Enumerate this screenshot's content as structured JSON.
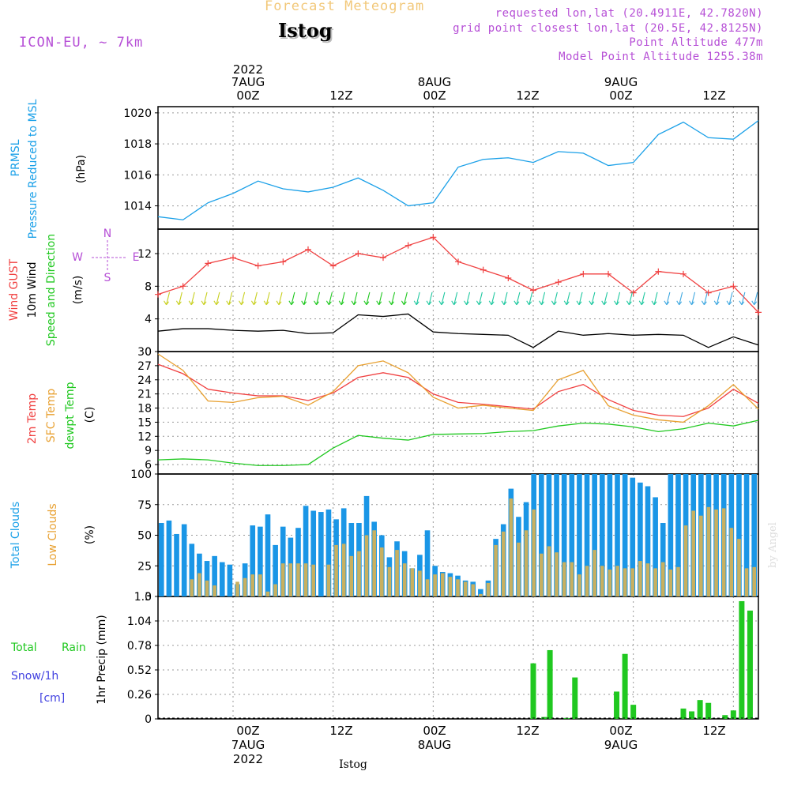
{
  "header": {
    "forecast_title": "Forecast Meteogram",
    "place": "Istog",
    "model": "ICON-EU, ~ 7km",
    "requested": "requested lon,lat (20.4911E, 42.7820N)",
    "grid_point": "grid point closest lon,lat (20.5E, 42.8125N)",
    "point_altitude": "Point Altitude 477m",
    "model_altitude": "Model Point Altitude 1255.38m"
  },
  "time_axis": {
    "top": {
      "year": "2022",
      "day1": "7AUG",
      "z1": "00Z",
      "z2": "12Z",
      "day2": "8AUG",
      "z3": "00Z",
      "z4": "12Z",
      "day3": "9AUG",
      "z5": "00Z",
      "z6": "12Z"
    },
    "bottom": {
      "z1": "00Z",
      "day1": "7AUG",
      "year": "2022",
      "z2": "12Z",
      "z3": "00Z",
      "day2": "8AUG",
      "z4": "12Z",
      "z5": "00Z",
      "day3": "9AUG",
      "z6": "12Z"
    },
    "place_bottom": "Istog"
  },
  "panel_labels": {
    "p1_a": "PRMSL",
    "p1_b": "Pressure Reduced to MSL",
    "p1_unit": "(hPa)",
    "p2_a": "Wind GUST",
    "p2_b": "10m Wind",
    "p2_c": "Speed and Direction",
    "p2_unit": "(m/s)",
    "p2_compass_n": "N",
    "p2_compass_s": "S",
    "p2_compass_w": "W",
    "p2_compass_e": "E",
    "p3_a": "2m Temp",
    "p3_b": "SFC Temp",
    "p3_c": "dewpt Temp",
    "p3_unit": "(C)",
    "p4_a": "Total Clouds",
    "p4_b": "Low Clouds",
    "p4_unit": "(%)",
    "p5_a": "Total",
    "p5_b": "Rain",
    "p5_c": "Snow/1h",
    "p5_d": "[cm]",
    "p5_unit": "1hr Precip (mm)"
  },
  "watermark": "by Angel",
  "colors": {
    "pressure": "#1aa0e8",
    "gust": "#f04040",
    "wind": "#000000",
    "temp2m": "#f04040",
    "sfc": "#e8a030",
    "dewpt": "#20c820",
    "total_cloud": "#1a96e6",
    "low_cloud": "#c8b060",
    "rain": "#20c820",
    "snow": "#4040e0",
    "model": "#b64fd6"
  },
  "chart_data": {
    "type": "line",
    "x_start": "2022-08-06 15Z",
    "x_end": "2022-08-09 15Z",
    "x_step_hours": 1,
    "panels": [
      {
        "name": "PRMSL",
        "ylabel": "(hPa)",
        "ylim": [
          1012.5,
          1020.4
        ],
        "yticks": [
          1014,
          1016,
          1018,
          1020
        ],
        "series": [
          {
            "name": "PRMSL",
            "x": [
              0,
              3,
              6,
              9,
              12,
              15,
              18,
              21,
              24,
              27,
              30,
              33,
              36,
              39,
              42,
              45,
              48,
              51,
              54,
              57,
              60,
              63,
              66,
              69,
              72
            ],
            "values": [
              1013.3,
              1013.1,
              1014.2,
              1014.8,
              1015.6,
              1015.1,
              1014.9,
              1015.2,
              1015.8,
              1015.0,
              1014.0,
              1014.2,
              1016.5,
              1017.0,
              1017.1,
              1016.8,
              1017.5,
              1017.4,
              1016.6,
              1016.8,
              1018.6,
              1019.4,
              1018.4,
              1018.3,
              1019.5
            ]
          }
        ]
      },
      {
        "name": "Wind",
        "ylabel": "(m/s)",
        "ylim": [
          0,
          15
        ],
        "yticks": [
          0,
          4,
          8,
          12
        ],
        "series": [
          {
            "name": "Wind GUST",
            "x": [
              0,
              3,
              6,
              9,
              12,
              15,
              18,
              21,
              24,
              27,
              30,
              33,
              36,
              39,
              42,
              45,
              48,
              51,
              54,
              57,
              60,
              63,
              66,
              69,
              72
            ],
            "values": [
              7,
              8,
              10.8,
              11.5,
              10.5,
              11,
              12.5,
              10.5,
              12,
              11.5,
              13,
              14,
              11,
              10,
              9,
              7.5,
              8.5,
              9.5,
              9.5,
              7.2,
              9.8,
              9.5,
              7.2,
              8,
              4.8
            ]
          },
          {
            "name": "10m Wind",
            "x": [
              0,
              3,
              6,
              9,
              12,
              15,
              18,
              21,
              24,
              27,
              30,
              33,
              36,
              39,
              42,
              45,
              48,
              51,
              54,
              57,
              60,
              63,
              66,
              69,
              72
            ],
            "values": [
              2.5,
              2.8,
              2.8,
              2.6,
              2.5,
              2.6,
              2.2,
              2.3,
              4.5,
              4.3,
              4.6,
              2.4,
              2.2,
              2.1,
              2.0,
              0.5,
              2.5,
              2.0,
              2.2,
              2.0,
              2.1,
              2.0,
              0.5,
              1.8,
              0.8
            ]
          }
        ]
      },
      {
        "name": "Temperature",
        "ylabel": "(C)",
        "ylim": [
          4,
          30
        ],
        "yticks": [
          6,
          9,
          12,
          15,
          18,
          21,
          24,
          27,
          30
        ],
        "series": [
          {
            "name": "2m Temp",
            "x": [
              0,
              3,
              6,
              9,
              12,
              15,
              18,
              21,
              24,
              27,
              30,
              33,
              36,
              39,
              42,
              45,
              48,
              51,
              54,
              57,
              60,
              63,
              66,
              69,
              72
            ],
            "values": [
              27.3,
              25.3,
              22.0,
              21.2,
              20.6,
              20.6,
              19.6,
              21.2,
              24.5,
              25.5,
              24.5,
              21.0,
              19.2,
              18.8,
              18.3,
              17.8,
              21.5,
              23.0,
              19.8,
              17.5,
              16.5,
              16.2,
              18.0,
              22.0,
              19.0
            ]
          },
          {
            "name": "SFC Temp",
            "x": [
              0,
              3,
              6,
              9,
              12,
              15,
              18,
              21,
              24,
              27,
              30,
              33,
              36,
              39,
              42,
              45,
              48,
              51,
              54,
              57,
              60,
              63,
              66,
              69,
              72
            ],
            "values": [
              29.5,
              26.0,
              19.5,
              19.2,
              20.2,
              20.5,
              18.6,
              21.5,
              27.0,
              28.0,
              25.5,
              20.3,
              18.0,
              18.6,
              18.0,
              17.5,
              24.0,
              26.0,
              18.5,
              16.5,
              15.5,
              15.0,
              18.5,
              23.0,
              17.8
            ]
          },
          {
            "name": "dewpt Temp",
            "x": [
              0,
              3,
              6,
              9,
              12,
              15,
              18,
              21,
              24,
              27,
              30,
              33,
              36,
              39,
              42,
              45,
              48,
              51,
              54,
              57,
              60,
              63,
              66,
              69,
              72
            ],
            "values": [
              7.0,
              7.2,
              7.0,
              6.3,
              5.8,
              5.8,
              6.0,
              9.5,
              12.2,
              11.6,
              11.2,
              12.4,
              12.5,
              12.6,
              13.0,
              13.2,
              14.2,
              14.8,
              14.6,
              14.0,
              13.0,
              13.6,
              14.8,
              14.2,
              15.4
            ]
          }
        ]
      },
      {
        "name": "Clouds",
        "type": "bar",
        "ylabel": "(%)",
        "ylim": [
          0,
          100
        ],
        "yticks": [
          0,
          25,
          50,
          75,
          100
        ],
        "series": [
          {
            "name": "Total Clouds",
            "values": [
              60,
              62,
              51,
              59,
              43,
              35,
              29,
              33,
              28,
              26,
              10,
              27,
              58,
              57,
              67,
              42,
              57,
              48,
              56,
              74,
              70,
              69,
              71,
              63,
              72,
              60,
              60,
              82,
              61,
              50,
              32,
              45,
              37,
              23,
              34,
              54,
              25,
              20,
              19,
              17,
              13,
              12,
              6,
              13,
              47,
              59,
              88,
              65,
              77,
              100,
              100,
              100,
              100,
              100,
              100,
              100,
              100,
              100,
              100,
              100,
              100,
              100,
              97,
              93,
              90,
              81,
              60,
              100,
              100,
              100,
              100,
              100,
              100,
              100,
              100,
              100,
              100,
              100,
              100
            ]
          },
          {
            "name": "Low Clouds",
            "values": [
              0,
              0,
              0,
              0,
              14,
              19,
              13,
              9,
              0,
              0,
              12,
              15,
              18,
              18,
              4,
              10,
              27,
              27,
              27,
              27,
              26,
              0,
              26,
              42,
              43,
              33,
              37,
              50,
              54,
              40,
              24,
              38,
              27,
              23,
              21,
              14,
              18,
              19,
              16,
              14,
              12,
              10,
              2,
              11,
              42,
              53,
              80,
              44,
              54,
              71,
              35,
              41,
              36,
              28,
              28,
              18,
              25,
              38,
              25,
              22,
              25,
              23,
              23,
              29,
              27,
              23,
              28,
              22,
              24,
              58,
              70,
              66,
              73,
              71,
              72,
              56,
              47,
              23,
              24
            ]
          }
        ]
      },
      {
        "name": "Precip",
        "type": "bar",
        "ylabel": "1hr Precip (mm)",
        "ylim": [
          0,
          1.3
        ],
        "yticks": [
          0,
          0.26,
          0.52,
          0.78,
          1.04,
          1.3
        ],
        "series": [
          {
            "name": "Total Rain",
            "x": [
              45,
              46.3,
              47,
              49,
              50,
              55,
              56,
              57,
              63,
              64,
              65,
              66,
              68,
              69,
              70,
              71
            ],
            "values": [
              0.59,
              0.02,
              0.73,
              0.01,
              0.44,
              0.29,
              0.69,
              0.15,
              0.11,
              0.08,
              0.2,
              0.17,
              0.04,
              0.09,
              1.25,
              1.15
            ]
          },
          {
            "name": "Snow/1h",
            "x": [],
            "values": []
          }
        ]
      }
    ]
  }
}
